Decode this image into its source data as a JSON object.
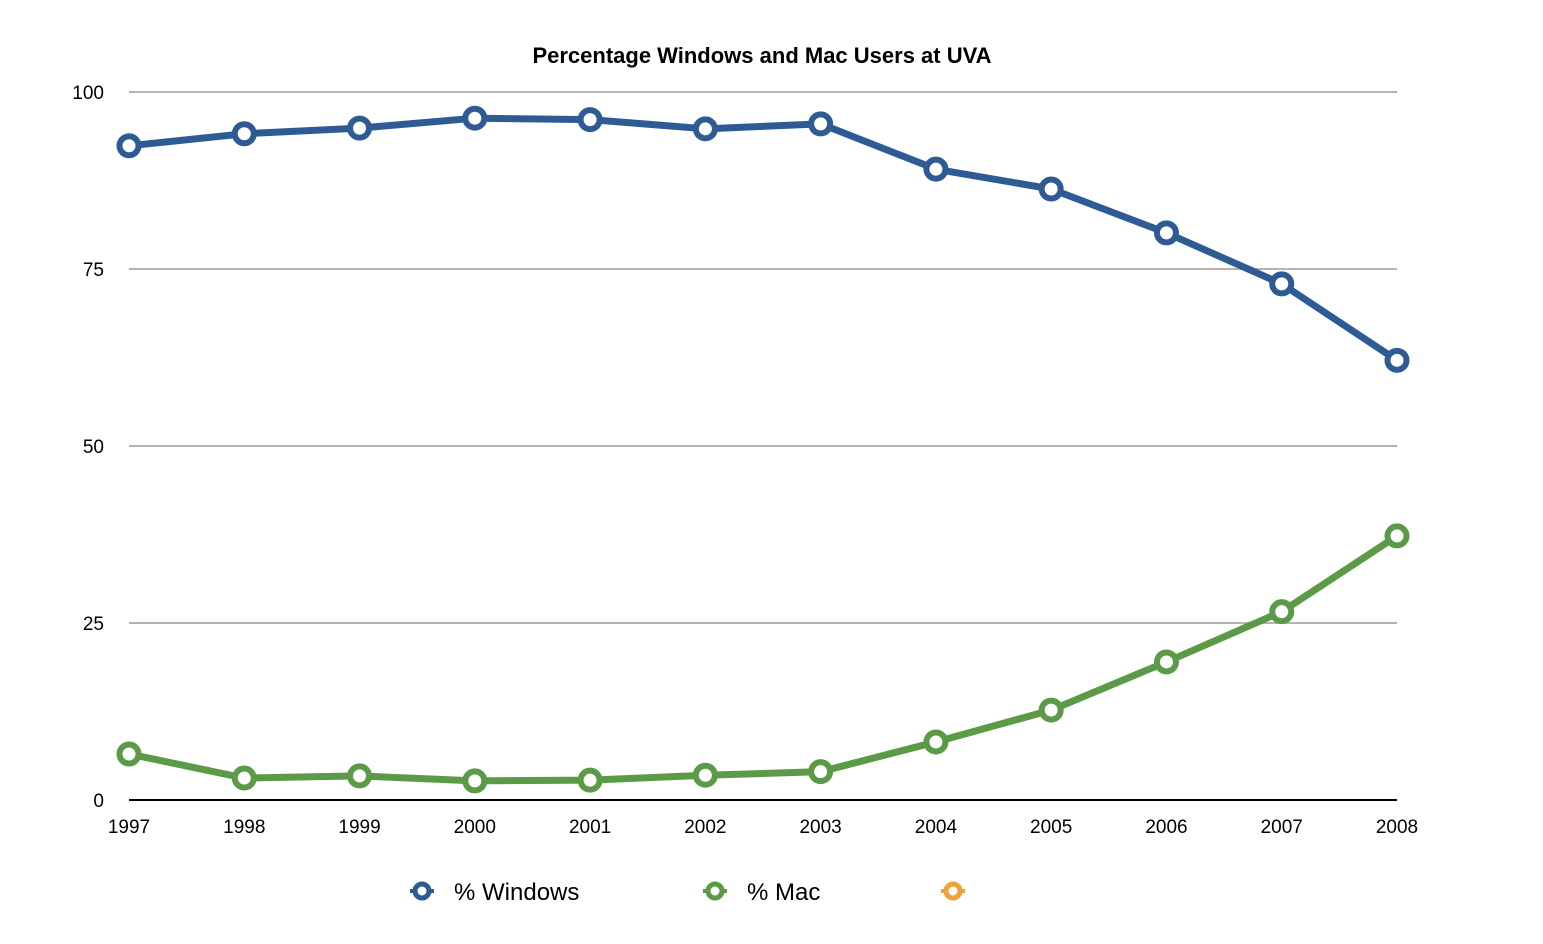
{
  "chart_data": {
    "type": "line",
    "title": "Percentage Windows and Mac Users at UVA",
    "xlabel": "",
    "ylabel": "",
    "x": [
      "1997",
      "1998",
      "1999",
      "2000",
      "2001",
      "2002",
      "2003",
      "2004",
      "2005",
      "2006",
      "2007",
      "2008"
    ],
    "ylim": [
      0,
      100
    ],
    "yticks": [
      0,
      25,
      50,
      75,
      100
    ],
    "ytick_labels": [
      "0",
      "25",
      "50",
      "75",
      "100"
    ],
    "grid": true,
    "legend_position": "bottom",
    "series": [
      {
        "name": "% Windows",
        "color": "#2f5b94",
        "values": [
          92.4,
          94.1,
          94.9,
          96.3,
          96.1,
          94.8,
          95.5,
          89.1,
          86.3,
          80.1,
          72.9,
          62.1
        ]
      },
      {
        "name": "% Mac",
        "color": "#5b9a46",
        "values": [
          6.5,
          3.1,
          3.4,
          2.7,
          2.8,
          3.5,
          4.0,
          8.2,
          12.7,
          19.5,
          26.6,
          37.3
        ]
      },
      {
        "name": "",
        "color": "#eea23a",
        "values": []
      }
    ]
  }
}
